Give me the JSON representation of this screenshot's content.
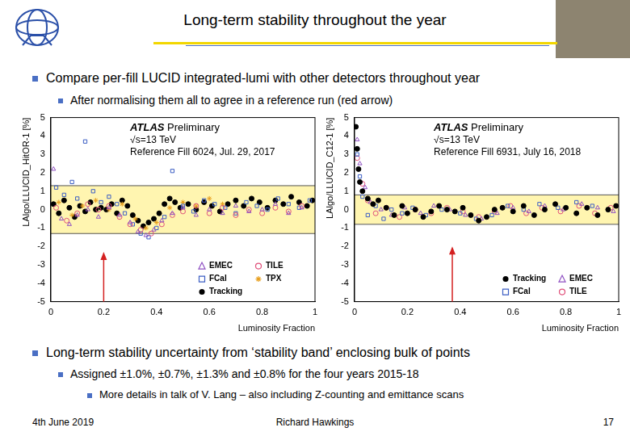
{
  "slide": {
    "title": "Long-term stability throughout the year",
    "bullets": [
      {
        "text": "Compare per-fill LUCID integrated-lumi with other detectors throughout year",
        "sub": [
          {
            "text": "After normalising them all to agree in a reference run (red arrow)",
            "sub": []
          }
        ]
      },
      {
        "text": "Long-term stability uncertainty from ‘stability band’ enclosing bulk of points",
        "sub": [
          {
            "text": "Assigned ±1.0%, ±0.7%, ±1.3% and ±0.8% for the four years 2015-18",
            "sub": [
              "More details in talk of V. Lang – also including Z-counting and emittance scans"
            ]
          }
        ]
      }
    ],
    "footer": {
      "date": "4th June 2019",
      "author": "Richard Hawkings",
      "page": "17"
    }
  },
  "chart_data": [
    {
      "type": "scatter",
      "annotations": [
        "ATLAS Preliminary",
        "√s=13 TeV",
        "Reference Fill 6024, Jul. 29, 2017"
      ],
      "x_label": "Luminosity Fraction",
      "y_label": "LAlgo/LLUCID_HitOR-1 [%]",
      "xlim": [
        0,
        1
      ],
      "xticks": [
        0,
        0.2,
        0.4,
        0.6,
        0.8,
        1
      ],
      "ylim": [
        -5,
        5
      ],
      "yticks": [
        -5,
        -4,
        -3,
        -2,
        -1,
        0,
        1,
        2,
        3,
        4,
        5
      ],
      "grid": false,
      "legend": "lower right",
      "band": [
        -1.3,
        1.3
      ],
      "arrow": {
        "x": 0.2,
        "y": -2.3
      },
      "series": [
        {
          "name": "EMEC",
          "color": "#8e4fc2",
          "marker": "open_triangle",
          "x": [
            0.01,
            0.04,
            0.07,
            0.1,
            0.14,
            0.18,
            0.22,
            0.26,
            0.3,
            0.33,
            0.36,
            0.39,
            0.42,
            0.46,
            0.5,
            0.55,
            0.6,
            0.65,
            0.7,
            0.75,
            0.8,
            0.85,
            0.9,
            0.95
          ],
          "values": [
            2.2,
            -0.5,
            -0.8,
            -0.3,
            0.0,
            -0.4,
            0.1,
            -0.3,
            -0.7,
            -1.2,
            -1.4,
            -1.1,
            -0.6,
            -0.2,
            0.1,
            -0.3,
            0.0,
            -0.2,
            0.2,
            -0.1,
            0.0,
            0.3,
            -0.2,
            0.1
          ]
        },
        {
          "name": "TILE",
          "color": "#e0507a",
          "marker": "open_circle",
          "x": [
            0.02,
            0.06,
            0.1,
            0.14,
            0.18,
            0.22,
            0.26,
            0.3,
            0.34,
            0.38,
            0.42,
            0.46,
            0.5,
            0.55,
            0.6,
            0.65,
            0.7,
            0.75,
            0.8,
            0.85,
            0.9,
            0.95
          ],
          "values": [
            0.1,
            -0.6,
            -0.2,
            0.3,
            0.0,
            0.2,
            -0.4,
            -0.8,
            -1.1,
            -1.3,
            -0.8,
            -0.3,
            -0.1,
            0.2,
            -0.2,
            0.1,
            -0.3,
            0.0,
            -0.2,
            0.1,
            -0.1,
            0.2
          ]
        },
        {
          "name": "FCal",
          "color": "#3d5fc4",
          "marker": "open_square",
          "x": [
            0.02,
            0.05,
            0.08,
            0.1,
            0.13,
            0.16,
            0.19,
            0.22,
            0.25,
            0.28,
            0.31,
            0.34,
            0.37,
            0.4,
            0.43,
            0.46,
            0.5,
            0.54,
            0.58,
            0.62,
            0.66,
            0.7,
            0.74,
            0.78,
            0.82,
            0.86,
            0.9,
            0.94,
            0.98
          ],
          "values": [
            1.2,
            0.8,
            1.5,
            0.6,
            3.7,
            1.0,
            0.4,
            0.7,
            0.3,
            -0.2,
            -0.8,
            -1.3,
            -1.5,
            -1.0,
            -0.4,
            2.1,
            0.2,
            -0.1,
            0.5,
            0.3,
            0.1,
            -0.2,
            0.4,
            0.2,
            0.0,
            0.6,
            0.3,
            0.1,
            0.5
          ]
        },
        {
          "name": "TPX",
          "color": "#e8a020",
          "marker": "star",
          "x": [
            0.03,
            0.08,
            0.12,
            0.17,
            0.22,
            0.27,
            0.32,
            0.36,
            0.4,
            0.45,
            0.5,
            0.55,
            0.6,
            0.65
          ],
          "values": [
            0.4,
            -0.3,
            0.2,
            0.5,
            0.0,
            0.3,
            -0.5,
            -1.0,
            -0.7,
            0.1,
            0.4,
            0.2,
            0.6,
            0.3
          ]
        },
        {
          "name": "Tracking",
          "color": "#000000",
          "marker": "filled_circle",
          "x": [
            0.01,
            0.03,
            0.05,
            0.07,
            0.09,
            0.11,
            0.13,
            0.15,
            0.17,
            0.19,
            0.21,
            0.23,
            0.25,
            0.27,
            0.29,
            0.31,
            0.33,
            0.35,
            0.37,
            0.39,
            0.41,
            0.43,
            0.45,
            0.47,
            0.49,
            0.52,
            0.55,
            0.58,
            0.61,
            0.64,
            0.67,
            0.7,
            0.73,
            0.76,
            0.79,
            0.82,
            0.85,
            0.88,
            0.91,
            0.94,
            0.97,
            0.99
          ],
          "values": [
            0.3,
            -0.2,
            0.5,
            0.1,
            -0.4,
            0.2,
            -0.1,
            0.4,
            0.0,
            0.1,
            0.0,
            0.3,
            -0.2,
            0.5,
            0.2,
            -0.3,
            -0.6,
            -0.9,
            -0.7,
            -0.5,
            -0.2,
            0.3,
            0.6,
            0.4,
            0.1,
            0.3,
            0.0,
            0.4,
            0.2,
            -0.1,
            0.3,
            0.5,
            0.2,
            0.6,
            0.4,
            0.1,
            0.5,
            0.3,
            0.7,
            0.4,
            0.2,
            0.5
          ]
        }
      ]
    },
    {
      "type": "scatter",
      "annotations": [
        "ATLAS Preliminary",
        "√s=13 TeV",
        "Reference Fill 6931, July 16, 2018"
      ],
      "x_label": "Luminosity Fraction",
      "y_label": "LAlgo/LLUCID_C12-1 [%]",
      "xlim": [
        0,
        1
      ],
      "xticks": [
        0,
        0.2,
        0.4,
        0.6,
        0.8,
        1
      ],
      "ylim": [
        -5,
        5
      ],
      "yticks": [
        -5,
        -4,
        -3,
        -2,
        -1,
        0,
        1,
        2,
        3,
        4,
        5
      ],
      "grid": false,
      "legend": "lower right",
      "band": [
        -0.8,
        0.8
      ],
      "arrow": {
        "x": 0.37,
        "y": -2.0
      },
      "series": [
        {
          "name": "Tracking",
          "color": "#000000",
          "marker": "filled_circle",
          "x": [
            0.005,
            0.01,
            0.015,
            0.02,
            0.03,
            0.05,
            0.07,
            0.09,
            0.12,
            0.15,
            0.18,
            0.2,
            0.23,
            0.26,
            0.29,
            0.32,
            0.35,
            0.38,
            0.41,
            0.44,
            0.47,
            0.5,
            0.53,
            0.56,
            0.6,
            0.64,
            0.68,
            0.72,
            0.76,
            0.8,
            0.84,
            0.88,
            0.92,
            0.96,
            0.99
          ],
          "values": [
            4.5,
            3.3,
            2.2,
            1.5,
            1.0,
            0.6,
            0.3,
            0.5,
            0.1,
            -0.3,
            0.2,
            -0.2,
            0.0,
            -0.4,
            -0.1,
            0.2,
            0.0,
            -0.1,
            0.1,
            -0.3,
            -0.6,
            -0.4,
            0.0,
            0.1,
            -0.1,
            0.2,
            -0.3,
            0.0,
            0.3,
            0.1,
            -0.2,
            0.1,
            -0.3,
            0.0,
            0.2
          ]
        },
        {
          "name": "EMEC",
          "color": "#8e4fc2",
          "marker": "open_triangle",
          "x": [
            0.01,
            0.02,
            0.04,
            0.06,
            0.1,
            0.14,
            0.19,
            0.25,
            0.3,
            0.36,
            0.42,
            0.48,
            0.54,
            0.6,
            0.66,
            0.72,
            0.79,
            0.86,
            0.92,
            0.98
          ],
          "values": [
            3.8,
            2.5,
            1.2,
            0.4,
            0.0,
            -0.3,
            0.1,
            -0.2,
            0.2,
            0.0,
            -0.3,
            -0.5,
            -0.2,
            0.1,
            -0.1,
            0.2,
            0.0,
            0.3,
            0.1,
            -0.1
          ]
        },
        {
          "name": "FCal",
          "color": "#3d5fc4",
          "marker": "open_square",
          "x": [
            0.01,
            0.02,
            0.03,
            0.05,
            0.08,
            0.11,
            0.14,
            0.18,
            0.22,
            0.27,
            0.33,
            0.4,
            0.46,
            0.52,
            0.58,
            0.64,
            0.7,
            0.77,
            0.84,
            0.9,
            0.96
          ],
          "values": [
            3.0,
            1.8,
            0.7,
            -0.3,
            0.2,
            -0.5,
            0.0,
            -0.2,
            0.1,
            -0.3,
            0.0,
            -0.2,
            -0.5,
            -0.3,
            0.2,
            0.0,
            0.3,
            0.1,
            0.4,
            0.2,
            0.0
          ]
        },
        {
          "name": "TILE",
          "color": "#e0507a",
          "marker": "open_circle",
          "x": [
            0.01,
            0.03,
            0.05,
            0.08,
            0.12,
            0.17,
            0.23,
            0.29,
            0.35,
            0.41,
            0.47,
            0.53,
            0.59,
            0.65,
            0.71,
            0.78,
            0.85,
            0.91,
            0.97
          ],
          "values": [
            2.8,
            1.4,
            0.5,
            -0.2,
            0.1,
            -0.4,
            0.0,
            -0.2,
            0.1,
            -0.1,
            -0.4,
            -0.1,
            0.2,
            -0.2,
            0.1,
            -0.1,
            0.2,
            -0.2,
            0.1
          ]
        }
      ]
    }
  ]
}
